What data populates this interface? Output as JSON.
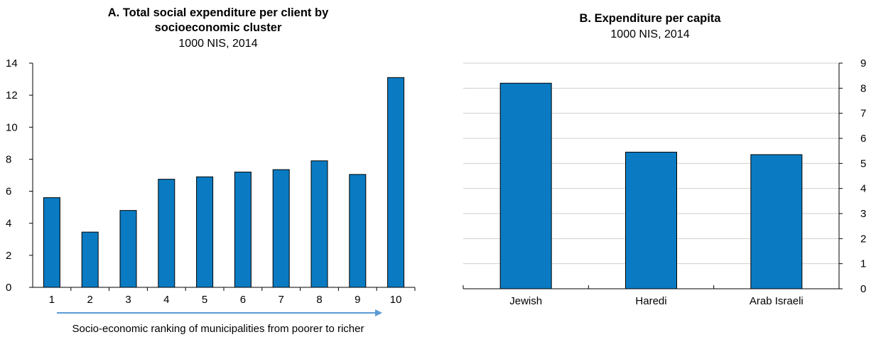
{
  "colors": {
    "bar": "#0a7bc2",
    "bar_stroke": "#000000",
    "grid": "#cfcfcf",
    "arrow": "#5b9bd5"
  },
  "chart_data": [
    {
      "type": "bar",
      "title_line1": "A. Total social expenditure per client by",
      "title_line2": "socioeconomic cluster",
      "subtitle": "1000 NIS, 2014",
      "xlabel": "Socio-economic ranking of municipalities from poorer to richer",
      "ylabel": "",
      "categories": [
        "1",
        "2",
        "3",
        "4",
        "5",
        "6",
        "7",
        "8",
        "9",
        "10"
      ],
      "values": [
        5.6,
        3.45,
        4.8,
        6.75,
        6.9,
        7.2,
        7.35,
        7.9,
        7.05,
        13.1
      ],
      "ylim": [
        0,
        14
      ],
      "yticks": [
        "0",
        "2",
        "4",
        "6",
        "8",
        "10",
        "12",
        "14"
      ],
      "grid": true,
      "y_axis_side": "left"
    },
    {
      "type": "bar",
      "title_line1": "B. Expenditure per capita",
      "subtitle": "1000 NIS, 2014",
      "xlabel": "",
      "ylabel": "",
      "categories": [
        "Jewish",
        "Haredi",
        "Arab Israeli"
      ],
      "values": [
        8.2,
        5.45,
        5.35
      ],
      "ylim": [
        0,
        9
      ],
      "yticks": [
        "0",
        "1",
        "2",
        "3",
        "4",
        "5",
        "6",
        "7",
        "8",
        "9"
      ],
      "grid": true,
      "y_axis_side": "right"
    }
  ]
}
